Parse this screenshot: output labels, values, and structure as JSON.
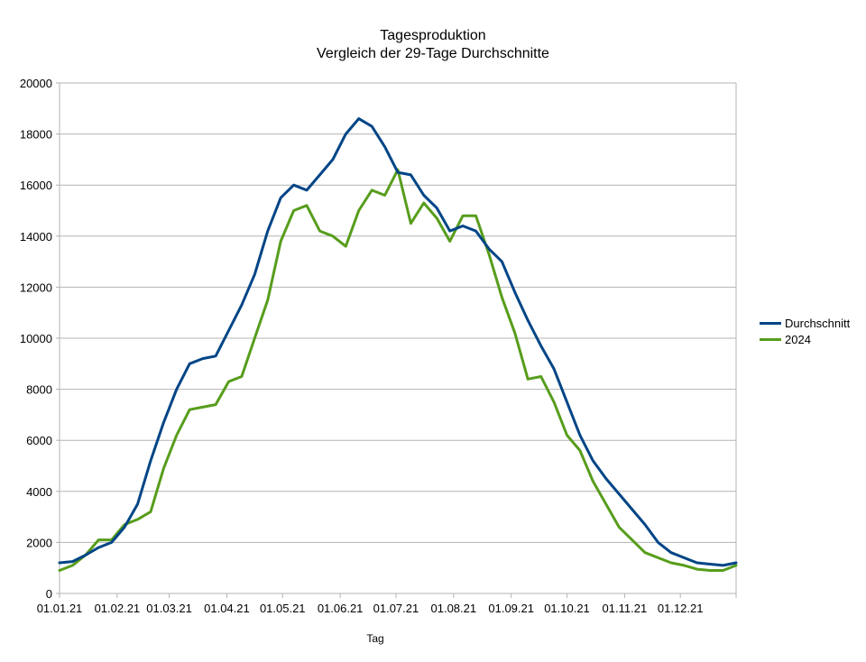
{
  "chart_data": {
    "type": "line",
    "title": "Tagesproduktion",
    "subtitle": "Vergleich der 29-Tage Durchschnitte",
    "xlabel": "Tag",
    "ylabel": "",
    "ylim": [
      0,
      20000
    ],
    "yticks": [
      0,
      2000,
      4000,
      6000,
      8000,
      10000,
      12000,
      14000,
      16000,
      18000,
      20000
    ],
    "x_tick_labels": [
      "01.01.21",
      "01.02.21",
      "01.03.21",
      "01.04.21",
      "01.05.21",
      "01.06.21",
      "01.07.21",
      "01.08.21",
      "01.09.21",
      "01.10.21",
      "01.11.21",
      "01.12.21"
    ],
    "grid": true,
    "legend_position": "right",
    "x": [
      "01.01.21",
      "08.01.21",
      "15.01.21",
      "22.01.21",
      "29.01.21",
      "05.02.21",
      "12.02.21",
      "19.02.21",
      "26.02.21",
      "05.03.21",
      "12.03.21",
      "19.03.21",
      "26.03.21",
      "02.04.21",
      "09.04.21",
      "16.04.21",
      "23.04.21",
      "30.04.21",
      "07.05.21",
      "14.05.21",
      "21.05.21",
      "28.05.21",
      "04.06.21",
      "11.06.21",
      "18.06.21",
      "25.06.21",
      "02.07.21",
      "09.07.21",
      "16.07.21",
      "23.07.21",
      "30.07.21",
      "06.08.21",
      "13.08.21",
      "20.08.21",
      "27.08.21",
      "03.09.21",
      "10.09.21",
      "17.09.21",
      "24.09.21",
      "01.10.21",
      "08.10.21",
      "15.10.21",
      "22.10.21",
      "29.10.21",
      "05.11.21",
      "12.11.21",
      "19.11.21",
      "26.11.21",
      "03.12.21",
      "10.12.21",
      "17.12.21",
      "24.12.21",
      "31.12.21"
    ],
    "series": [
      {
        "name": "Durchschnitt",
        "color": "#004586",
        "values": [
          1200,
          1250,
          1500,
          1800,
          2000,
          2600,
          3500,
          5200,
          6700,
          8000,
          9000,
          9200,
          9300,
          10300,
          11300,
          12500,
          14200,
          15500,
          16000,
          15800,
          16400,
          17000,
          18000,
          18600,
          18300,
          17500,
          16500,
          16400,
          15600,
          15100,
          14200,
          14400,
          14200,
          13500,
          13000,
          11800,
          10700,
          9700,
          8800,
          7500,
          6200,
          5200,
          4500,
          3900,
          3300,
          2700,
          2000,
          1600,
          1400,
          1200,
          1150,
          1100,
          1200
        ]
      },
      {
        "name": "2024",
        "color": "#579d1c",
        "values": [
          900,
          1100,
          1500,
          2100,
          2100,
          2700,
          2900,
          3200,
          4900,
          6200,
          7200,
          7300,
          7400,
          8300,
          8500,
          10000,
          11500,
          13800,
          15000,
          15200,
          14200,
          14000,
          13600,
          15000,
          15800,
          15600,
          16600,
          14500,
          15300,
          14700,
          13800,
          14800,
          14800,
          13300,
          11600,
          10200,
          8400,
          8500,
          7500,
          6200,
          5600,
          4400,
          3500,
          2600,
          2100,
          1600,
          1400,
          1200,
          1100,
          950,
          900,
          900,
          1100
        ]
      }
    ]
  }
}
